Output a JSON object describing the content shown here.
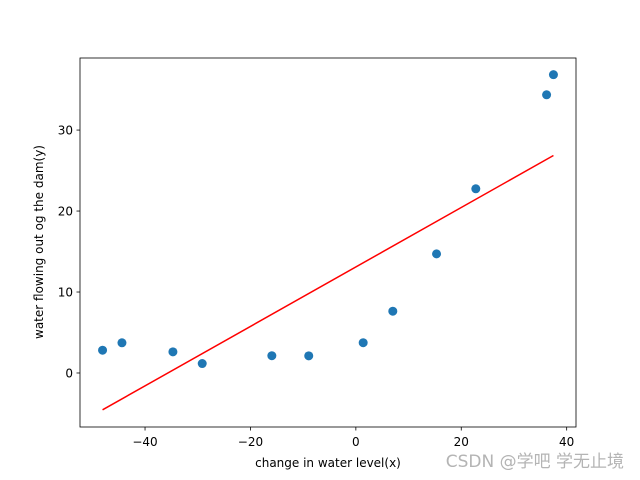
{
  "chart_data": {
    "type": "scatter",
    "xlabel": "change in water level(x)",
    "ylabel": "water flowing out og the dam(y)",
    "x": [
      -15.94,
      -29.15,
      36.19,
      37.49,
      -48.06,
      -8.94,
      15.31,
      -34.71,
      1.39,
      -44.38,
      7.01,
      22.76
    ],
    "series": [
      {
        "color": "#1f77b4",
        "mode": "markers",
        "values": [
          2.13,
          1.17,
          34.36,
          36.84,
          2.81,
          2.12,
          14.71,
          2.61,
          3.74,
          3.73,
          7.63,
          22.75
        ]
      },
      {
        "color": "#ff0000",
        "mode": "line",
        "x": [
          -48.06,
          37.49
        ],
        "values": [
          -4.55,
          26.86
        ]
      }
    ],
    "xlim": [
      -52.34,
      41.77
    ],
    "ylim": [
      -6.67,
      38.9
    ],
    "xticks": [
      {
        "value": -40,
        "label": "−40"
      },
      {
        "value": -20,
        "label": "−20"
      },
      0,
      20,
      40
    ],
    "yticks": [
      0,
      10,
      20,
      30
    ],
    "watermark": "CSDN @学吧 学无止境"
  }
}
